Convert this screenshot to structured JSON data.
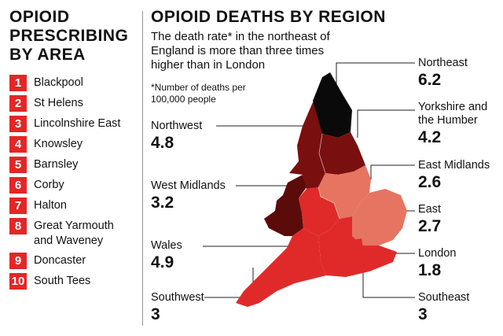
{
  "left_title": "OPIOID PRESCRIBING BY AREA",
  "ranking": [
    {
      "rank": "1",
      "name": "Blackpool"
    },
    {
      "rank": "2",
      "name": "St Helens"
    },
    {
      "rank": "3",
      "name": "Lincolnshire East"
    },
    {
      "rank": "4",
      "name": "Knowsley"
    },
    {
      "rank": "5",
      "name": "Barnsley"
    },
    {
      "rank": "6",
      "name": "Corby"
    },
    {
      "rank": "7",
      "name": "Halton"
    },
    {
      "rank": "8",
      "name": "Great Yarmouth\nand Waveney"
    },
    {
      "rank": "9",
      "name": "Doncaster"
    },
    {
      "rank": "10",
      "name": "South Tees"
    }
  ],
  "main_title": "OPIOID DEATHS BY REGION",
  "subtitle": "The death rate* in the northeast of England is more than three times higher than in London",
  "footnote": "*Number of deaths per 100,000 people",
  "colors": {
    "darkest": "#0a0a0a",
    "dark": "#5c0b0b",
    "medium_dark": "#7a0f0f",
    "bright": "#e02a2a",
    "light": "#e57560",
    "rank_badge": "#e32626"
  },
  "regions": [
    {
      "key": "northeast",
      "name": "Northeast",
      "value": "6.2"
    },
    {
      "key": "yorkshire",
      "name": "Yorkshire and\nthe Humber",
      "value": "4.2"
    },
    {
      "key": "east_midlands",
      "name": "East Midlands",
      "value": "2.6"
    },
    {
      "key": "east",
      "name": "East",
      "value": "2.7"
    },
    {
      "key": "london",
      "name": "London",
      "value": "1.8"
    },
    {
      "key": "southeast",
      "name": "Southeast",
      "value": "3"
    },
    {
      "key": "northwest",
      "name": "Northwest",
      "value": "4.8"
    },
    {
      "key": "west_midlands",
      "name": "West Midlands",
      "value": "3.2"
    },
    {
      "key": "wales",
      "name": "Wales",
      "value": "4.9"
    },
    {
      "key": "southwest",
      "name": "Southwest",
      "value": "3"
    }
  ]
}
